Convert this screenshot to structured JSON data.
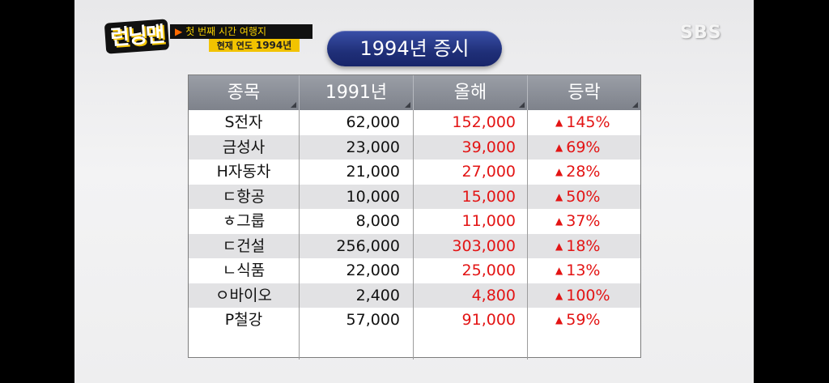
{
  "overlay": {
    "show_logo": "런닝맨",
    "caption_line1": "첫 번째 시간 여행지",
    "caption_line2_label": "현재 연도",
    "caption_line2_year": "1994년",
    "broadcaster": "SBS"
  },
  "title": "1994년 증시",
  "table": {
    "headers": [
      "종목",
      "1991년",
      "올해",
      "등락"
    ],
    "rows": [
      {
        "name": "S전자",
        "y1991": "62,000",
        "now": "152,000",
        "change": "145%"
      },
      {
        "name": "금성사",
        "y1991": "23,000",
        "now": "39,000",
        "change": "69%"
      },
      {
        "name": "H자동차",
        "y1991": "21,000",
        "now": "27,000",
        "change": "28%"
      },
      {
        "name": "ㄷ항공",
        "y1991": "10,000",
        "now": "15,000",
        "change": "50%"
      },
      {
        "name": "ㅎ그룹",
        "y1991": "8,000",
        "now": "11,000",
        "change": "37%"
      },
      {
        "name": "ㄷ건설",
        "y1991": "256,000",
        "now": "303,000",
        "change": "18%"
      },
      {
        "name": "ㄴ식품",
        "y1991": "22,000",
        "now": "25,000",
        "change": "13%"
      },
      {
        "name": "ㅇ바이오",
        "y1991": "2,400",
        "now": "4,800",
        "change": "100%"
      },
      {
        "name": "P철강",
        "y1991": "57,000",
        "now": "91,000",
        "change": "59%"
      }
    ],
    "up_symbol": "▲"
  },
  "colors": {
    "rise": "#e31414",
    "title_bg": "#1f2f78",
    "header_bg": "#8a8e96",
    "caption_yellow": "#f2c300"
  }
}
